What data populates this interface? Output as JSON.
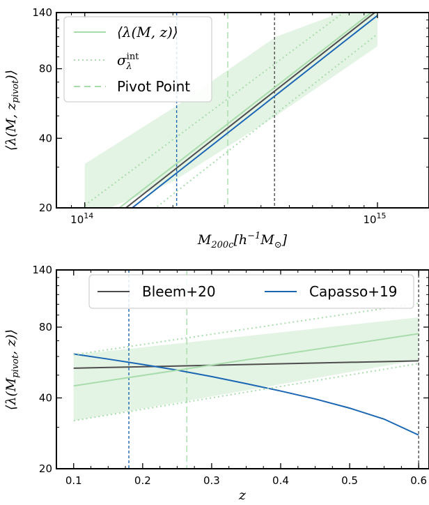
{
  "chart_data": [
    {
      "type": "line",
      "xscale": "log",
      "yscale": "log",
      "xlim": [
        80000000000000,
        1500000000000000
      ],
      "ylim": [
        20,
        140
      ],
      "xticks": [
        {
          "value": 100000000000000,
          "label": "10^14"
        },
        {
          "value": 1000000000000000,
          "label": "10^15"
        }
      ],
      "yticks": [
        {
          "value": 20,
          "label": "20"
        },
        {
          "value": 40,
          "label": "40"
        },
        {
          "value": 80,
          "label": "80"
        },
        {
          "value": 140,
          "label": "140"
        }
      ],
      "xlabel": "M200c[h^-1 M⊙]",
      "ylabel": "⟨λ(M, z_pivot)⟩",
      "legend": {
        "position": "top-left",
        "entries": [
          {
            "label": "⟨λ(M,z)⟩",
            "style": "solid",
            "color": "#a8dcab"
          },
          {
            "label": "σ_λ^int",
            "style": "dotted",
            "color": "#a8dcab"
          },
          {
            "label": "Pivot Point",
            "style": "dashed",
            "color": "#a8dcab"
          }
        ]
      },
      "band": {
        "color": "#e3f3e4",
        "x": [
          100000000000000,
          200000000000000,
          450000000000000,
          1000000000000000
        ],
        "lower": [
          18,
          26,
          50,
          100
        ],
        "upper": [
          31,
          54,
          110,
          160
        ]
      },
      "series": [
        {
          "style": "solid",
          "color": "#a8dcab",
          "x": [
            100000000000000,
            1000000000000000
          ],
          "y": [
            15.3,
            147
          ]
        },
        {
          "style": "dotted",
          "color": "#a8dcab",
          "x": [
            100000000000000,
            1000000000000000
          ],
          "y": [
            20.5,
            180
          ]
        },
        {
          "style": "dotted",
          "color": "#a8dcab",
          "x": [
            100000000000000,
            1000000000000000
          ],
          "y": [
            11.5,
            113
          ]
        },
        {
          "style": "solid",
          "color": "#4d4d4d",
          "x": [
            100000000000000,
            1000000000000000
          ],
          "y": [
            14.5,
            143
          ]
        },
        {
          "style": "solid",
          "color": "#1a66b3",
          "x": [
            100000000000000,
            1000000000000000
          ],
          "y": [
            13.8,
            136
          ]
        }
      ],
      "vlines": [
        {
          "x": 206000000000000,
          "color": "#1a66b3",
          "style": "dashed"
        },
        {
          "x": 308000000000000,
          "color": "#a8dcab",
          "style": "dashed"
        },
        {
          "x": 445000000000000,
          "color": "#4d4d4d",
          "style": "dashed"
        }
      ],
      "grid": false
    },
    {
      "type": "line",
      "xscale": "linear",
      "yscale": "log",
      "xlim": [
        0.075,
        0.615
      ],
      "ylim": [
        20,
        140
      ],
      "xticks": [
        {
          "value": 0.1,
          "label": "0.1"
        },
        {
          "value": 0.2,
          "label": "0.2"
        },
        {
          "value": 0.3,
          "label": "0.3"
        },
        {
          "value": 0.4,
          "label": "0.4"
        },
        {
          "value": 0.5,
          "label": "0.5"
        },
        {
          "value": 0.6,
          "label": "0.6"
        }
      ],
      "yticks": [
        {
          "value": 20,
          "label": "20"
        },
        {
          "value": 40,
          "label": "40"
        },
        {
          "value": 80,
          "label": "80"
        },
        {
          "value": 140,
          "label": "140"
        }
      ],
      "xlabel": "z",
      "ylabel": "⟨λ(M_pivot, z)⟩",
      "legend": {
        "position": "top-right",
        "entries": [
          {
            "label": "Bleem+20",
            "style": "solid",
            "color": "#4d4d4d"
          },
          {
            "label": "Capasso+19",
            "style": "solid",
            "color": "#1a66b3"
          }
        ]
      },
      "band": {
        "color": "#e3f3e4",
        "x": [
          0.1,
          0.6
        ],
        "lower": [
          32,
          58
        ],
        "upper": [
          61,
          88
        ]
      },
      "series": [
        {
          "name": "Bleem+20",
          "style": "solid",
          "color": "#4d4d4d",
          "x": [
            0.1,
            0.6
          ],
          "y": [
            53.5,
            57.5
          ]
        },
        {
          "name": "Capasso+19",
          "style": "solid",
          "color": "#1a66b3",
          "x": [
            0.1,
            0.15,
            0.2,
            0.25,
            0.3,
            0.35,
            0.4,
            0.45,
            0.5,
            0.55,
            0.6
          ],
          "y": [
            61.5,
            58.5,
            55.5,
            52.5,
            49.3,
            46,
            42.8,
            39.6,
            36.2,
            32.5,
            27.8
          ]
        },
        {
          "style": "solid",
          "color": "#a8dcab",
          "x": [
            0.1,
            0.6
          ],
          "y": [
            45,
            75
          ]
        },
        {
          "style": "dotted",
          "color": "#a8dcab",
          "x": [
            0.1,
            0.6
          ],
          "y": [
            61,
            101
          ]
        },
        {
          "style": "dotted",
          "color": "#a8dcab",
          "x": [
            0.1,
            0.6
          ],
          "y": [
            32,
            56
          ]
        }
      ],
      "vlines": [
        {
          "x": 0.18,
          "color": "#1a66b3",
          "style": "dashed"
        },
        {
          "x": 0.264,
          "color": "#a8dcab",
          "style": "dashed"
        },
        {
          "x": 0.6,
          "color": "#4d4d4d",
          "style": "dashed"
        }
      ],
      "grid": false
    }
  ]
}
